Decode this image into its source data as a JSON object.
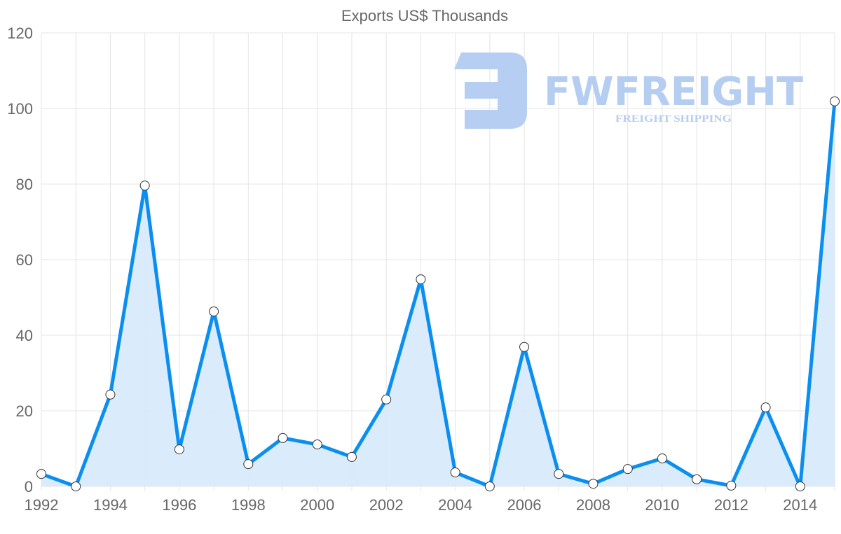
{
  "watermark": {
    "brand": "FWFREIGHT",
    "tagline": "FREIGHT SHIPPING"
  },
  "colors": {
    "line": "#0a8ff0",
    "fill": "#d8eafb",
    "grid": "#e4e4e4",
    "logo": "#b3cbf2"
  },
  "chart_data": {
    "type": "area",
    "title": "Exports US$ Thousands",
    "xlabel": "",
    "ylabel": "",
    "x": [
      1992,
      1993,
      1994,
      1995,
      1996,
      1997,
      1998,
      1999,
      2000,
      2001,
      2002,
      2003,
      2004,
      2005,
      2006,
      2007,
      2008,
      2009,
      2010,
      2011,
      2012,
      2013,
      2014,
      2015
    ],
    "series": [
      {
        "name": "Exports US$ Thousands",
        "values": [
          3.3,
          0,
          24.3,
          79.6,
          9.8,
          46.3,
          5.9,
          12.8,
          11.1,
          7.8,
          23.0,
          54.8,
          3.7,
          0,
          36.9,
          3.3,
          0.7,
          4.6,
          7.4,
          1.9,
          0.2,
          20.9,
          0,
          101.9
        ]
      }
    ],
    "ylim": [
      0,
      120
    ],
    "yticks": [
      "0",
      "20",
      "40",
      "60",
      "80",
      "100",
      "120"
    ],
    "xticks": [
      "1992",
      "1994",
      "1996",
      "1998",
      "2000",
      "2002",
      "2004",
      "2006",
      "2008",
      "2010",
      "2012",
      "2014"
    ],
    "grid": true,
    "legend": "none"
  }
}
